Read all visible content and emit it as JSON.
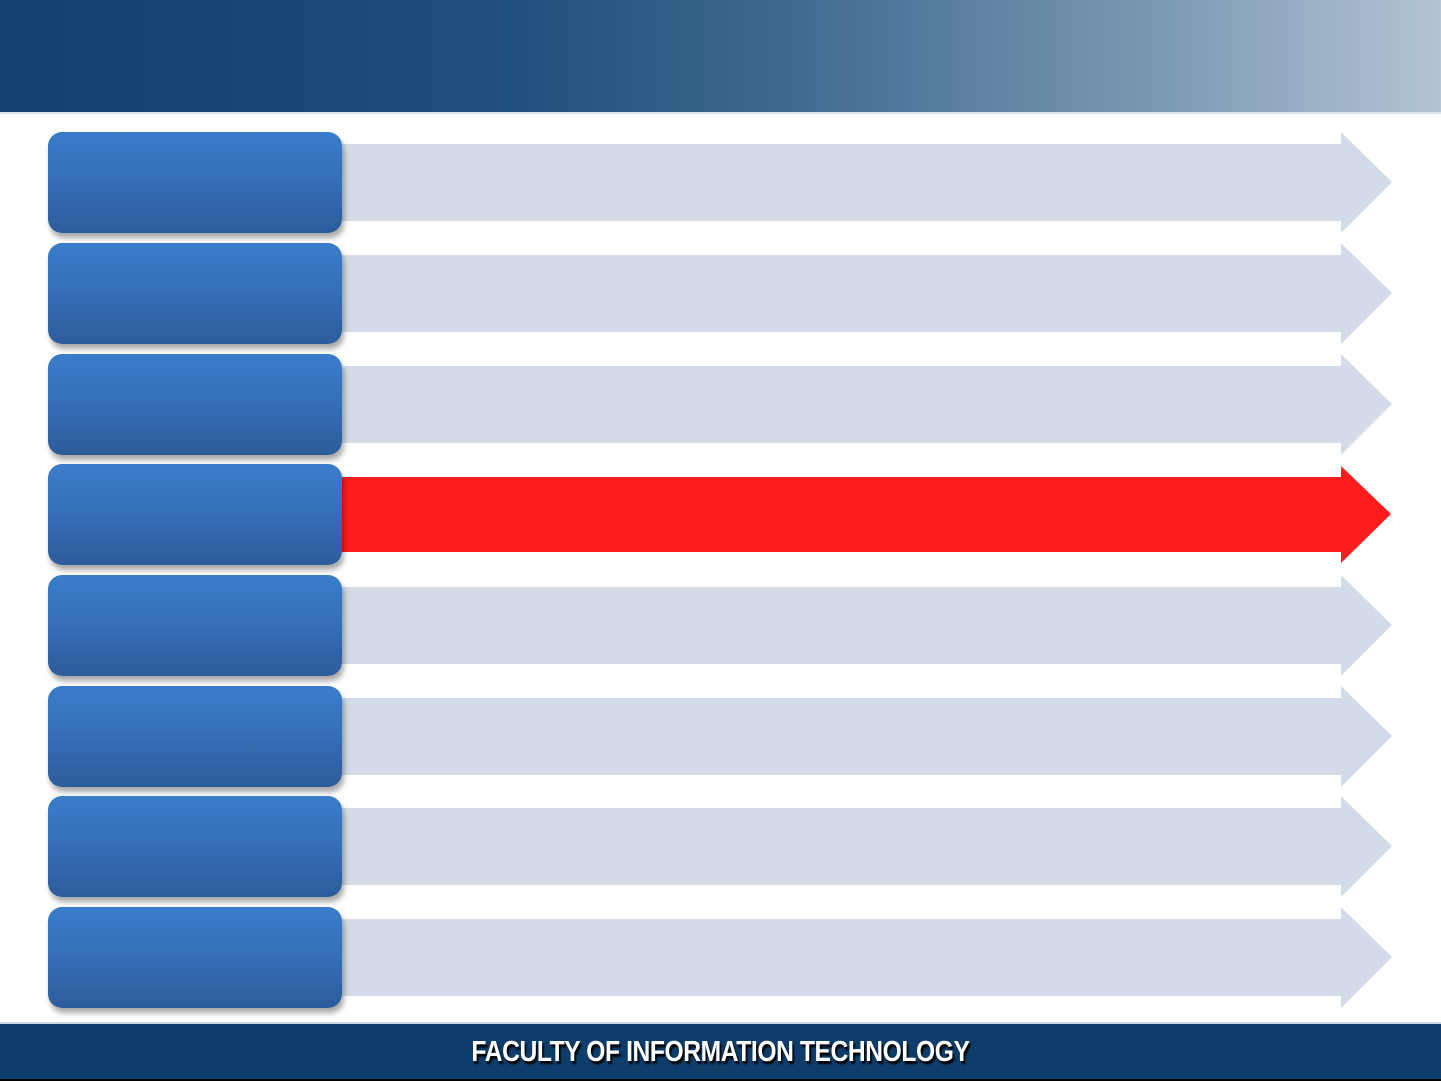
{
  "slide": {
    "footer_text": "FACULTY OF INFORMATION TECHNOLOGY",
    "colors": {
      "box": "#3670b8",
      "arrow_default": "#d3dbe8",
      "arrow_highlight": "#ff1c1c",
      "header_start": "#123f6d",
      "header_end": "#b3c4d4",
      "footer": "#0f3d6b"
    },
    "rows": [
      {
        "highlighted": false
      },
      {
        "highlighted": false
      },
      {
        "highlighted": false
      },
      {
        "highlighted": true
      },
      {
        "highlighted": false
      },
      {
        "highlighted": false
      },
      {
        "highlighted": false
      },
      {
        "highlighted": false
      }
    ]
  }
}
